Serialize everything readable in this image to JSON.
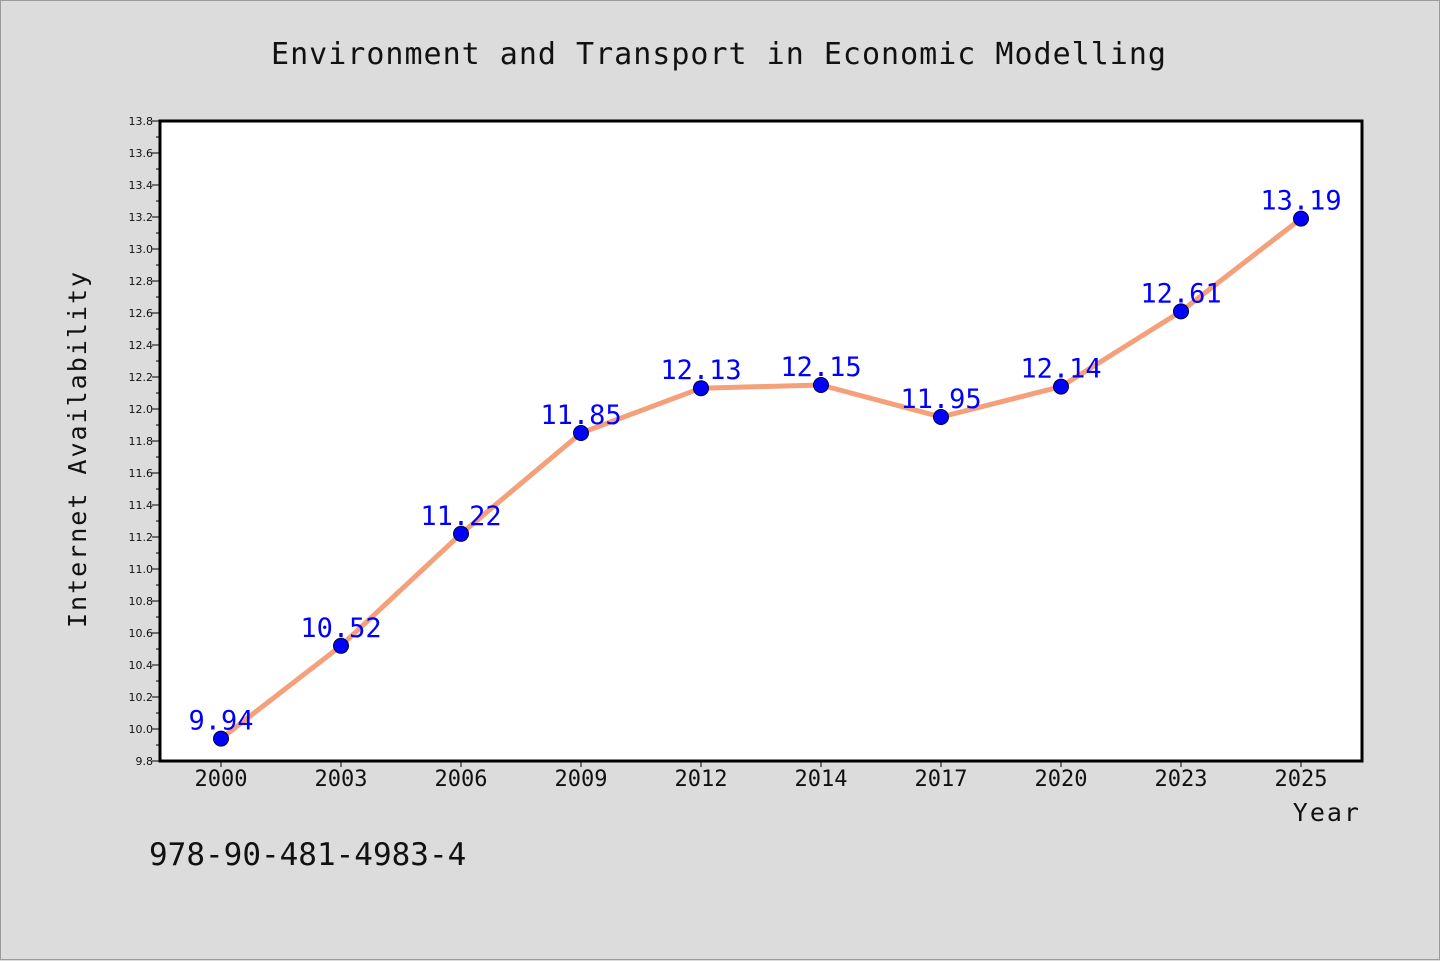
{
  "chart_data": {
    "type": "line",
    "title": "Environment and Transport in Economic Modelling",
    "xlabel": "Year",
    "ylabel": "Internet Availability",
    "categories": [
      "2000",
      "2003",
      "2006",
      "2009",
      "2012",
      "2014",
      "2017",
      "2020",
      "2023",
      "2025"
    ],
    "series": [
      {
        "values": [
          9.94,
          10.52,
          11.22,
          11.85,
          12.13,
          12.15,
          11.95,
          12.14,
          12.61,
          13.19
        ],
        "labels": [
          "9.94",
          "10.52",
          "11.22",
          "11.85",
          "12.13",
          "12.15",
          "11.95",
          "12.14",
          "12.61",
          "13.19"
        ],
        "line_color": "#f4a07a",
        "marker_color": "#0000ff"
      }
    ],
    "ylim": [
      9.8,
      13.8
    ],
    "yticks": [
      "9.8",
      "10.0",
      "10.2",
      "10.4",
      "10.6",
      "10.8",
      "11.0",
      "11.2",
      "11.4",
      "11.6",
      "11.8",
      "12.0",
      "12.2",
      "12.4",
      "12.6",
      "12.8",
      "13.0",
      "13.2",
      "13.4",
      "13.6",
      "13.8"
    ],
    "grid": false,
    "legend": "none"
  },
  "footer": {
    "isbn": "978-90-481-4983-4"
  },
  "colors": {
    "background": "#dcdcdc",
    "plot_background": "#ffffff",
    "data_label": "#0000ff"
  }
}
